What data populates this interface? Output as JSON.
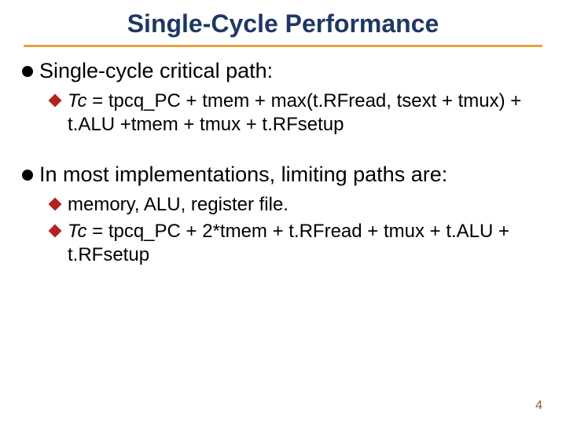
{
  "title": {
    "text": "Single-Cycle Performance",
    "color": "#1f3864",
    "fontsize": 32
  },
  "underline_color": "#e8a33d",
  "diamond_color": "#b22222",
  "page_number_color": "#a05a2c",
  "bullets": [
    {
      "text": "Single-cycle critical path:",
      "subs": [
        {
          "italic_prefix": "Tc",
          "rest": " = tpcq_PC + tmem + max(t.RFread, tsext + tmux) + t.ALU +tmem + tmux + t.RFsetup"
        }
      ]
    },
    {
      "text": "In most implementations, limiting paths are:",
      "subs": [
        {
          "italic_prefix": "",
          "rest": "memory, ALU, register file."
        },
        {
          "italic_prefix": "Tc",
          "rest": " = tpcq_PC + 2*tmem + t.RFread + tmux + t.ALU + t.RFsetup"
        }
      ]
    }
  ],
  "page_number": "4"
}
